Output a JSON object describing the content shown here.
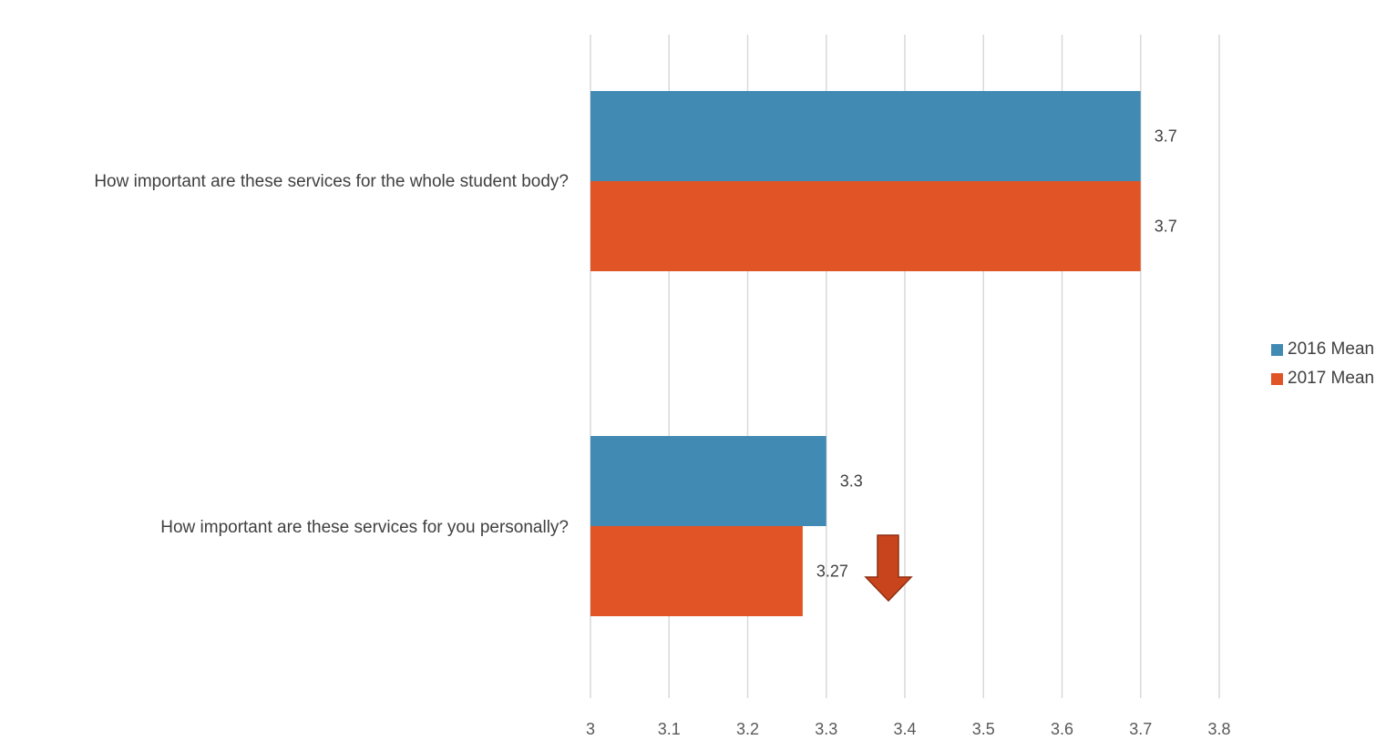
{
  "chart_data": {
    "type": "bar",
    "orientation": "horizontal",
    "categories": [
      "How important are these services for the whole student body?",
      "How important are these services for you personally?"
    ],
    "series": [
      {
        "name": "2016 Mean",
        "color": "#418AB3",
        "values": [
          3.7,
          3.3
        ],
        "labels": [
          "3.7",
          "3.3"
        ]
      },
      {
        "name": "2017 Mean",
        "color": "#E05426",
        "values": [
          3.7,
          3.27
        ],
        "labels": [
          "3.7",
          "3.27"
        ]
      }
    ],
    "xlim": [
      3,
      3.8
    ],
    "xticks": [
      "3",
      "3.1",
      "3.2",
      "3.3",
      "3.4",
      "3.5",
      "3.6",
      "3.7",
      "3.8"
    ],
    "grid": true,
    "legend_position": "right",
    "annotation": {
      "type": "down-arrow",
      "color": "#C8441C",
      "near_category": 1
    }
  }
}
